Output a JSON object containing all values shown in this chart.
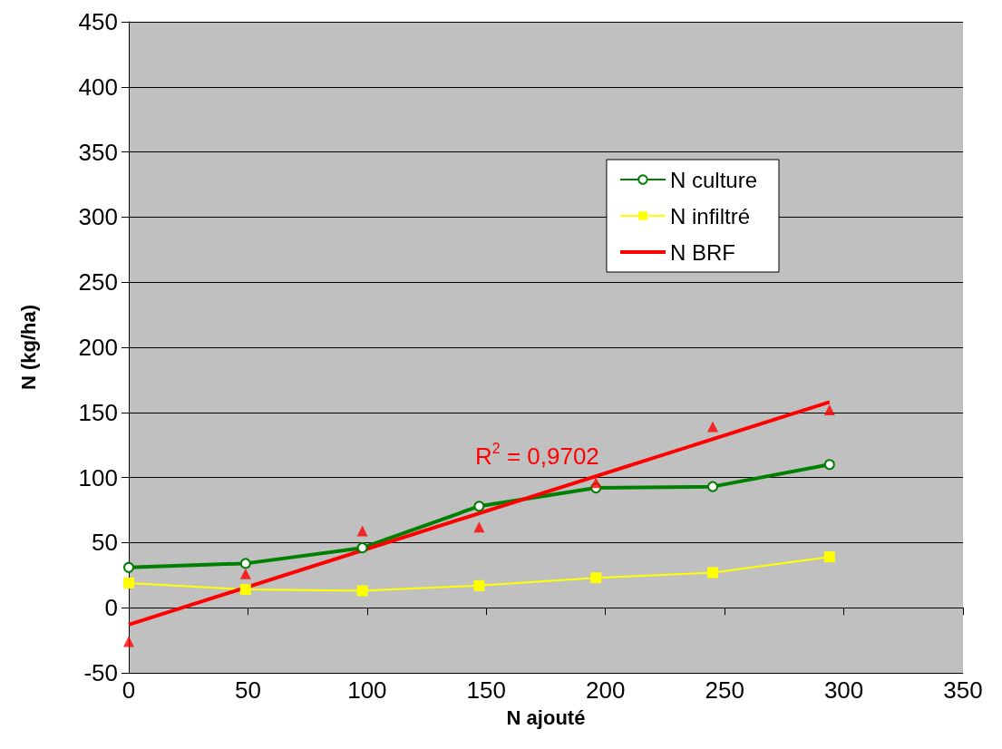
{
  "chart_data": {
    "type": "line",
    "xlabel": "N ajouté",
    "ylabel": "N (kg/ha)",
    "xlim": [
      0,
      350
    ],
    "xticks": [
      0,
      50,
      100,
      150,
      200,
      250,
      300,
      350
    ],
    "ylim": [
      -50,
      450
    ],
    "yticks": [
      -50,
      0,
      50,
      100,
      150,
      200,
      250,
      300,
      350,
      400,
      450
    ],
    "grid": "y",
    "legend": "right",
    "annotations": [
      "R$^{2}$ = 0,9702"
    ],
    "series": [
      {
        "name": "N culture",
        "color": "#008000",
        "marker": "circle",
        "x": [
          0,
          49,
          98,
          147,
          196,
          245,
          294
        ],
        "values": [
          31,
          34,
          46,
          78,
          92,
          93,
          110
        ]
      },
      {
        "name": "N infiltré",
        "color": "#ffff00",
        "marker": "square",
        "x": [
          0,
          49,
          98,
          147,
          196,
          245,
          294
        ],
        "values": [
          19,
          14,
          13,
          17,
          23,
          27,
          39
        ]
      },
      {
        "name": "N BRF",
        "color": "#ff0000",
        "marker": "none",
        "x": [
          0,
          294
        ],
        "values": [
          -13,
          158
        ]
      },
      {
        "type": "scatter",
        "color": "#ff0000",
        "marker": "triangle",
        "x": [
          0,
          49,
          98,
          147,
          196,
          245,
          294
        ],
        "values": [
          -26,
          26,
          59,
          62,
          96,
          139,
          152
        ]
      }
    ]
  }
}
